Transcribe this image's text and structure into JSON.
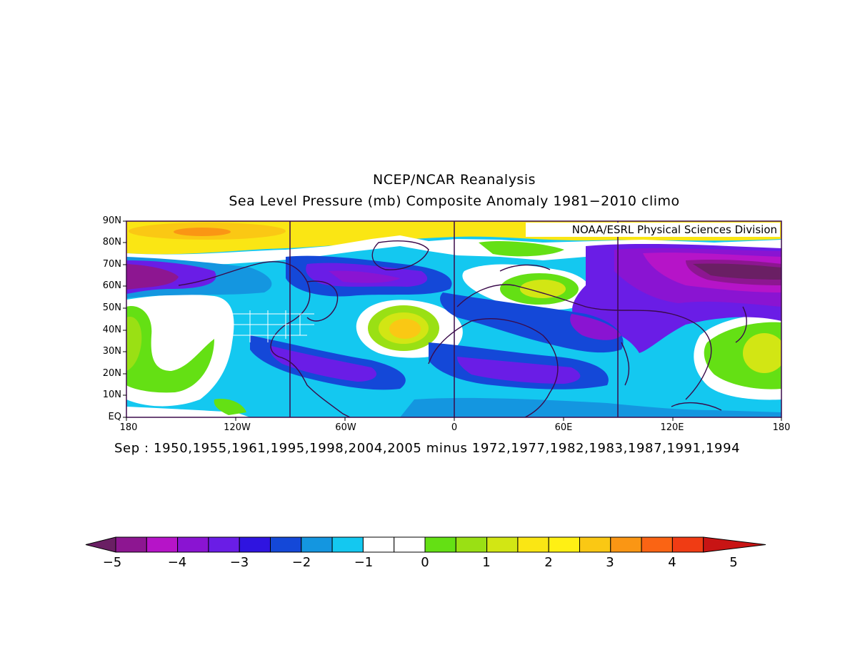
{
  "header": {
    "title": "NCEP/NCAR Reanalysis",
    "subtitle": "Sea Level Pressure (mb) Composite Anomaly 1981-2010 climo"
  },
  "credit": "NOAA/ESRL Physical Sciences Division",
  "footer": "Sep : 1950,1955,1961,1995,1998,2004,2005 minus 1972,1977,1982,1983,1987,1991,1994",
  "axes": {
    "lat_labels": [
      "90N",
      "80N",
      "70N",
      "60N",
      "50N",
      "40N",
      "30N",
      "20N",
      "10N",
      "EQ"
    ],
    "lon_labels": [
      "180",
      "120W",
      "60W",
      "0",
      "60E",
      "120E",
      "180"
    ]
  },
  "colorbar": {
    "tick_labels": [
      "-5",
      "-4",
      "-3",
      "-2",
      "-1",
      "0",
      "1",
      "2",
      "3",
      "4",
      "5"
    ],
    "colors": [
      "#6a1f64",
      "#8d1691",
      "#b614c8",
      "#8a14d2",
      "#6a1de6",
      "#2f14e0",
      "#1448d8",
      "#1496e0",
      "#14c8f0",
      "#ffffff",
      "#ffffff",
      "#64e014",
      "#9ae014",
      "#d2e614",
      "#fae614",
      "#fff014",
      "#fac814",
      "#fa9614",
      "#fa6414",
      "#f03c14",
      "#c81414"
    ]
  },
  "map": {
    "extent": {
      "lon": [
        -180,
        180
      ],
      "lat": [
        0,
        90
      ]
    },
    "projection": "cylindrical equidistant",
    "grid_meridians": [
      "90W",
      "0",
      "90E"
    ]
  }
}
